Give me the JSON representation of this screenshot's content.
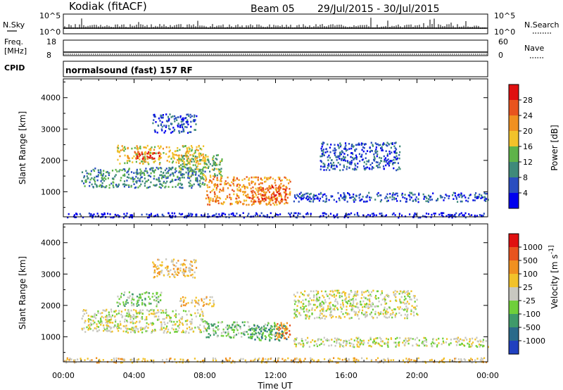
{
  "header": {
    "station": "Kodiak (fitACF)",
    "beam": "Beam 05",
    "dates": "29/Jul/2015 - 30/Jul/2015"
  },
  "strip1": {
    "left_label": "N.Sky",
    "right_label": "N.Search",
    "left_ticks": [
      "10^5",
      "10^0"
    ],
    "right_ticks": [
      "10^5",
      "10^0"
    ]
  },
  "strip2": {
    "left_label_1": "Freq.",
    "left_label_2": "[MHz]",
    "right_label": "Nave",
    "left_ticks": [
      "18",
      "8"
    ],
    "right_ticks": [
      "60",
      "0"
    ]
  },
  "strip3": {
    "left_label": "CPID",
    "cpid_text": "normalsound (fast) 157 RF"
  },
  "chart_data": [
    {
      "type": "heatmap",
      "name": "power",
      "ylabel": "Slant Range [km]",
      "yticks": [
        "1000",
        "2000",
        "3000",
        "4000"
      ],
      "ytick_values": [
        1000,
        2000,
        3000,
        4000
      ],
      "ylim": [
        200,
        4600
      ],
      "xlim": [
        0,
        24
      ],
      "colorbar": {
        "label": "Power [dB]",
        "ticks": [
          "4",
          "8",
          "12",
          "16",
          "20",
          "24",
          "28"
        ],
        "colors": [
          "#0000ee",
          "#2a4ec0",
          "#3f8a7a",
          "#5fb34a",
          "#f2c22a",
          "#f09020",
          "#e8541e",
          "#e01010"
        ]
      },
      "echo_bands": [
        {
          "t": [
            3.0,
            8.0
          ],
          "r": [
            1900,
            2500
          ],
          "level": 4
        },
        {
          "t": [
            4.0,
            5.5
          ],
          "r": [
            2050,
            2300
          ],
          "level": 7
        },
        {
          "t": [
            6.5,
            9.0
          ],
          "r": [
            1500,
            2200
          ],
          "level": 3
        },
        {
          "t": [
            8.0,
            12.8
          ],
          "r": [
            600,
            1500
          ],
          "level": 5
        },
        {
          "t": [
            10.5,
            12.6
          ],
          "r": [
            700,
            1200
          ],
          "level": 6
        },
        {
          "t": [
            1.0,
            8.0
          ],
          "r": [
            1150,
            1800
          ],
          "level": 2
        },
        {
          "t": [
            5.0,
            7.5
          ],
          "r": [
            2900,
            3500
          ],
          "level": 1
        },
        {
          "t": [
            14.5,
            19.0
          ],
          "r": [
            1700,
            2600
          ],
          "level": 1
        },
        {
          "t": [
            13.0,
            24.0
          ],
          "r": [
            700,
            1000
          ],
          "level": 1
        },
        {
          "t": [
            0.0,
            24.0
          ],
          "r": [
            200,
            350
          ],
          "level": 0
        }
      ]
    },
    {
      "type": "heatmap",
      "name": "velocity",
      "ylabel": "Slant Range [km]",
      "yticks": [
        "1000",
        "2000",
        "3000",
        "4000"
      ],
      "ytick_values": [
        1000,
        2000,
        3000,
        4000
      ],
      "ylim": [
        200,
        4600
      ],
      "xlim": [
        0,
        24
      ],
      "xlabel": "Time UT",
      "xticks": [
        "00:00",
        "04:00",
        "08:00",
        "12:00",
        "16:00",
        "20:00",
        "00:00"
      ],
      "xtick_values": [
        0,
        4,
        8,
        12,
        16,
        20,
        24
      ],
      "colorbar": {
        "label": "Velocity [m s",
        "ticks": [
          "1000",
          "500",
          "100",
          "25",
          "-25",
          "-100",
          "-500",
          "-1000"
        ],
        "colors": [
          "#2040c0",
          "#2a6a8a",
          "#3f9a6a",
          "#6fcf3a",
          "#c8c8c0",
          "#f2c22a",
          "#f09020",
          "#e8541e",
          "#e01010"
        ]
      },
      "echo_bands": [
        {
          "t": [
            1.0,
            8.0
          ],
          "r": [
            1150,
            1900
          ],
          "level": 4
        },
        {
          "t": [
            3.0,
            5.5
          ],
          "r": [
            2000,
            2450
          ],
          "level": 3
        },
        {
          "t": [
            6.5,
            8.5
          ],
          "r": [
            2000,
            2300
          ],
          "level": 5
        },
        {
          "t": [
            8.0,
            12.0
          ],
          "r": [
            1000,
            1500
          ],
          "level": 3
        },
        {
          "t": [
            10.5,
            12.6
          ],
          "r": [
            900,
            1400
          ],
          "level": 2
        },
        {
          "t": [
            12.0,
            12.8
          ],
          "r": [
            900,
            1500
          ],
          "level": 6
        },
        {
          "t": [
            13.0,
            20.0
          ],
          "r": [
            1600,
            2500
          ],
          "level": 4
        },
        {
          "t": [
            13.0,
            24.0
          ],
          "r": [
            700,
            1000
          ],
          "level": 4
        },
        {
          "t": [
            5.0,
            7.5
          ],
          "r": [
            2900,
            3500
          ],
          "level": 5
        },
        {
          "t": [
            0.0,
            24.0
          ],
          "r": [
            200,
            350
          ],
          "level": 5
        }
      ]
    }
  ]
}
